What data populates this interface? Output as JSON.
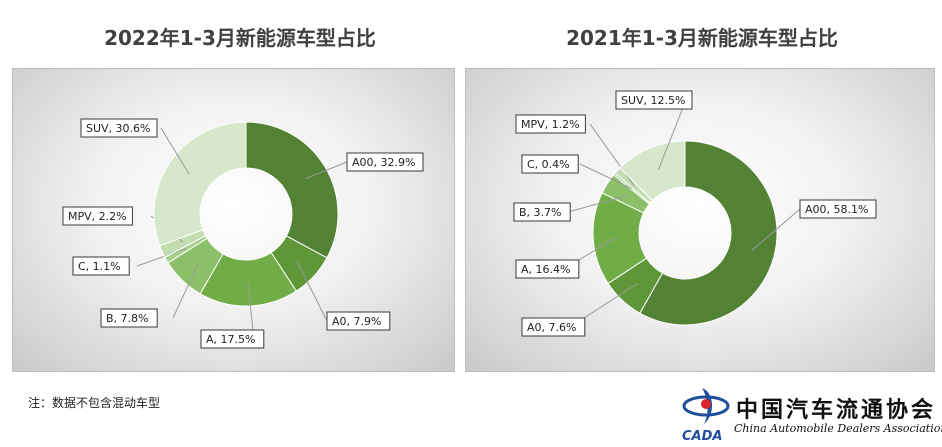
{
  "chart_data": [
    {
      "type": "pie",
      "donut": true,
      "title": "2022年1-3月新能源车型占比",
      "slices": [
        {
          "label": "A00",
          "value": 32.9,
          "text": "A00, 32.9%",
          "color": "#548235"
        },
        {
          "label": "A0",
          "value": 7.9,
          "text": "A0, 7.9%",
          "color": "#5e9638"
        },
        {
          "label": "A",
          "value": 17.5,
          "text": "A, 17.5%",
          "color": "#70ad47"
        },
        {
          "label": "B",
          "value": 7.8,
          "text": "B, 7.8%",
          "color": "#8bc068"
        },
        {
          "label": "C",
          "value": 1.1,
          "text": "C, 1.1%",
          "color": "#a9d18e"
        },
        {
          "label": "MPV",
          "value": 2.2,
          "text": "MPV, 2.2%",
          "color": "#c2ddb0"
        },
        {
          "label": "SUV",
          "value": 30.6,
          "text": "SUV, 30.6%",
          "color": "#d6e7cc"
        }
      ]
    },
    {
      "type": "pie",
      "donut": true,
      "title": "2021年1-3月新能源车型占比",
      "slices": [
        {
          "label": "A00",
          "value": 58.1,
          "text": "A00, 58.1%",
          "color": "#548235"
        },
        {
          "label": "A0",
          "value": 7.6,
          "text": "A0, 7.6%",
          "color": "#5e9638"
        },
        {
          "label": "A",
          "value": 16.4,
          "text": "A, 16.4%",
          "color": "#70ad47"
        },
        {
          "label": "B",
          "value": 3.7,
          "text": "B, 3.7%",
          "color": "#8bc068"
        },
        {
          "label": "C",
          "value": 0.4,
          "text": "C, 0.4%",
          "color": "#a9d18e"
        },
        {
          "label": "MPV",
          "value": 1.2,
          "text": "MPV, 1.2%",
          "color": "#c2ddb0"
        },
        {
          "label": "SUV",
          "value": 12.5,
          "text": "SUV, 12.5%",
          "color": "#d6e7cc"
        }
      ]
    }
  ],
  "note": "注：数据不包含混动车型",
  "logo": {
    "abbr": "CADA",
    "name_cn": "中国汽车流通协会",
    "name_en": "China Automobile Dealers Association"
  }
}
